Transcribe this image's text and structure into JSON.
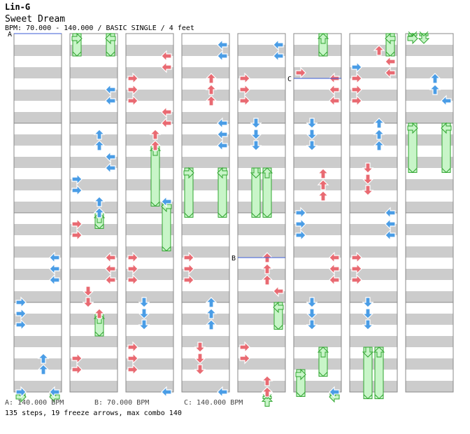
{
  "header": {
    "artist": "Lin-G",
    "title": "Sweet Dream",
    "bpm_line": "BPM: 70.000 - 140.000 / BASIC SINGLE / 4 feet"
  },
  "footer": {
    "bpm_a": "A: 140.000 BPM",
    "bpm_b": "B: 70.000 BPM",
    "bpm_c": "C: 140.000 BPM",
    "totals": "135 steps, 19 freeze arrows, max combo 140"
  },
  "colors": {
    "stripe": "#cccccc",
    "measure_line": "#888888",
    "quarter_arrow": "#e96a72",
    "eighth_arrow": "#4a9de6",
    "freeze": "#c8f5c8",
    "freeze_edge": "#2fa52f",
    "bpm_marker": "#3b5bd6"
  },
  "chart_data": {
    "type": "stepchart",
    "beats_per_column": 16,
    "panels": [
      "left",
      "down",
      "up",
      "right"
    ],
    "bpm_markers": [
      {
        "label": "A",
        "column": 0,
        "beat": 0
      },
      {
        "label": "B",
        "column": 4,
        "beat": 10
      },
      {
        "label": "C",
        "column": 5,
        "beat": 2
      }
    ],
    "columns": [
      {
        "notes": [
          {
            "beat": 10,
            "panel": "right",
            "kind": "eighth"
          },
          {
            "beat": 10.5,
            "panel": "right",
            "kind": "eighth"
          },
          {
            "beat": 11,
            "panel": "right",
            "kind": "eighth"
          },
          {
            "beat": 12,
            "panel": "left",
            "kind": "eighth"
          },
          {
            "beat": 12.5,
            "panel": "left",
            "kind": "eighth"
          },
          {
            "beat": 13,
            "panel": "left",
            "kind": "eighth"
          },
          {
            "beat": 14.5,
            "panel": "up",
            "kind": "eighth"
          },
          {
            "beat": 15,
            "panel": "up",
            "kind": "eighth"
          },
          {
            "beat": 16,
            "panel": "left",
            "kind": "eighth"
          },
          {
            "beat": 16,
            "panel": "right",
            "kind": "eighth"
          }
        ],
        "freezes": [
          {
            "panel": "left",
            "start": 16,
            "end": 16.2
          },
          {
            "panel": "right",
            "start": 16,
            "end": 16.2
          }
        ]
      },
      {
        "notes": [
          {
            "beat": 2.5,
            "panel": "right",
            "kind": "eighth"
          },
          {
            "beat": 3,
            "panel": "right",
            "kind": "eighth"
          },
          {
            "beat": 4.5,
            "panel": "up",
            "kind": "eighth"
          },
          {
            "beat": 5,
            "panel": "up",
            "kind": "eighth"
          },
          {
            "beat": 5.5,
            "panel": "right",
            "kind": "eighth"
          },
          {
            "beat": 6,
            "panel": "right",
            "kind": "eighth"
          },
          {
            "beat": 6.5,
            "panel": "left",
            "kind": "eighth"
          },
          {
            "beat": 7,
            "panel": "left",
            "kind": "eighth"
          },
          {
            "beat": 7.5,
            "panel": "up",
            "kind": "eighth"
          },
          {
            "beat": 8,
            "panel": "up",
            "kind": "eighth"
          },
          {
            "beat": 8.5,
            "panel": "left",
            "kind": "quarter"
          },
          {
            "beat": 9,
            "panel": "left",
            "kind": "quarter"
          },
          {
            "beat": 10,
            "panel": "right",
            "kind": "quarter"
          },
          {
            "beat": 10.5,
            "panel": "right",
            "kind": "quarter"
          },
          {
            "beat": 11,
            "panel": "right",
            "kind": "quarter"
          },
          {
            "beat": 11.5,
            "panel": "down",
            "kind": "quarter"
          },
          {
            "beat": 12,
            "panel": "down",
            "kind": "quarter"
          },
          {
            "beat": 12.5,
            "panel": "up",
            "kind": "quarter"
          },
          {
            "beat": 14.5,
            "panel": "left",
            "kind": "quarter"
          },
          {
            "beat": 15,
            "panel": "left",
            "kind": "quarter"
          }
        ],
        "freezes": [
          {
            "panel": "left",
            "start": 0,
            "end": 1
          },
          {
            "panel": "right",
            "start": 0,
            "end": 1
          },
          {
            "panel": "up",
            "start": 8,
            "end": 8.7
          },
          {
            "panel": "up",
            "start": 12.5,
            "end": 13.5
          }
        ]
      },
      {
        "notes": [
          {
            "beat": 1,
            "panel": "right",
            "kind": "quarter"
          },
          {
            "beat": 1.5,
            "panel": "right",
            "kind": "quarter"
          },
          {
            "beat": 2,
            "panel": "left",
            "kind": "quarter"
          },
          {
            "beat": 2.5,
            "panel": "left",
            "kind": "quarter"
          },
          {
            "beat": 3,
            "panel": "left",
            "kind": "quarter"
          },
          {
            "beat": 3.5,
            "panel": "right",
            "kind": "quarter"
          },
          {
            "beat": 4,
            "panel": "right",
            "kind": "quarter"
          },
          {
            "beat": 4.5,
            "panel": "up",
            "kind": "quarter"
          },
          {
            "beat": 5,
            "panel": "up",
            "kind": "quarter"
          },
          {
            "beat": 7.5,
            "panel": "right",
            "kind": "eighth"
          },
          {
            "beat": 10,
            "panel": "left",
            "kind": "quarter"
          },
          {
            "beat": 10.5,
            "panel": "left",
            "kind": "quarter"
          },
          {
            "beat": 11,
            "panel": "left",
            "kind": "quarter"
          },
          {
            "beat": 12,
            "panel": "down",
            "kind": "eighth"
          },
          {
            "beat": 12.5,
            "panel": "down",
            "kind": "eighth"
          },
          {
            "beat": 13,
            "panel": "down",
            "kind": "eighth"
          },
          {
            "beat": 14,
            "panel": "left",
            "kind": "quarter"
          },
          {
            "beat": 14.5,
            "panel": "left",
            "kind": "quarter"
          },
          {
            "beat": 15,
            "panel": "left",
            "kind": "quarter"
          },
          {
            "beat": 16,
            "panel": "right",
            "kind": "eighth"
          }
        ],
        "freezes": [
          {
            "panel": "up",
            "start": 5,
            "end": 7.7
          },
          {
            "panel": "right",
            "start": 7.5,
            "end": 9.7
          }
        ]
      },
      {
        "notes": [
          {
            "beat": 0.5,
            "panel": "right",
            "kind": "eighth"
          },
          {
            "beat": 1,
            "panel": "right",
            "kind": "eighth"
          },
          {
            "beat": 2,
            "panel": "up",
            "kind": "quarter"
          },
          {
            "beat": 2.5,
            "panel": "up",
            "kind": "quarter"
          },
          {
            "beat": 3,
            "panel": "up",
            "kind": "quarter"
          },
          {
            "beat": 4,
            "panel": "right",
            "kind": "eighth"
          },
          {
            "beat": 4.5,
            "panel": "right",
            "kind": "eighth"
          },
          {
            "beat": 5,
            "panel": "right",
            "kind": "eighth"
          },
          {
            "beat": 10,
            "panel": "left",
            "kind": "quarter"
          },
          {
            "beat": 10.5,
            "panel": "left",
            "kind": "quarter"
          },
          {
            "beat": 11,
            "panel": "left",
            "kind": "quarter"
          },
          {
            "beat": 12,
            "panel": "up",
            "kind": "eighth"
          },
          {
            "beat": 12.5,
            "panel": "up",
            "kind": "eighth"
          },
          {
            "beat": 13,
            "panel": "up",
            "kind": "eighth"
          },
          {
            "beat": 14,
            "panel": "down",
            "kind": "quarter"
          },
          {
            "beat": 14.5,
            "panel": "down",
            "kind": "quarter"
          },
          {
            "beat": 15,
            "panel": "down",
            "kind": "quarter"
          },
          {
            "beat": 16,
            "panel": "right",
            "kind": "eighth"
          }
        ],
        "freezes": [
          {
            "panel": "left",
            "start": 6,
            "end": 8.2
          },
          {
            "panel": "right",
            "start": 6,
            "end": 8.2
          }
        ]
      },
      {
        "notes": [
          {
            "beat": 0.5,
            "panel": "right",
            "kind": "eighth"
          },
          {
            "beat": 1,
            "panel": "right",
            "kind": "eighth"
          },
          {
            "beat": 2,
            "panel": "left",
            "kind": "quarter"
          },
          {
            "beat": 2.5,
            "panel": "left",
            "kind": "quarter"
          },
          {
            "beat": 3,
            "panel": "left",
            "kind": "quarter"
          },
          {
            "beat": 4,
            "panel": "down",
            "kind": "eighth"
          },
          {
            "beat": 4.5,
            "panel": "down",
            "kind": "eighth"
          },
          {
            "beat": 5,
            "panel": "down",
            "kind": "eighth"
          },
          {
            "beat": 10,
            "panel": "up",
            "kind": "quarter"
          },
          {
            "beat": 10.5,
            "panel": "up",
            "kind": "quarter"
          },
          {
            "beat": 11,
            "panel": "up",
            "kind": "quarter"
          },
          {
            "beat": 11.5,
            "panel": "right",
            "kind": "quarter"
          },
          {
            "beat": 14,
            "panel": "left",
            "kind": "quarter"
          },
          {
            "beat": 14.5,
            "panel": "left",
            "kind": "quarter"
          },
          {
            "beat": 15.5,
            "panel": "up",
            "kind": "quarter"
          },
          {
            "beat": 16,
            "panel": "up",
            "kind": "quarter"
          }
        ],
        "freezes": [
          {
            "panel": "down",
            "start": 6,
            "end": 8.2
          },
          {
            "panel": "up",
            "start": 6,
            "end": 8.2
          },
          {
            "panel": "right",
            "start": 12,
            "end": 13.2
          },
          {
            "panel": "up",
            "start": 16.2,
            "end": 16.3
          }
        ]
      },
      {
        "notes": [
          {
            "beat": 1.75,
            "panel": "left",
            "kind": "quarter"
          },
          {
            "beat": 2,
            "panel": "right",
            "kind": "quarter"
          },
          {
            "beat": 2.5,
            "panel": "right",
            "kind": "quarter"
          },
          {
            "beat": 3,
            "panel": "right",
            "kind": "quarter"
          },
          {
            "beat": 4,
            "panel": "down",
            "kind": "eighth"
          },
          {
            "beat": 4.5,
            "panel": "down",
            "kind": "eighth"
          },
          {
            "beat": 5,
            "panel": "down",
            "kind": "eighth"
          },
          {
            "beat": 6.25,
            "panel": "up",
            "kind": "quarter"
          },
          {
            "beat": 6.75,
            "panel": "up",
            "kind": "quarter"
          },
          {
            "beat": 7.25,
            "panel": "up",
            "kind": "quarter"
          },
          {
            "beat": 8,
            "panel": "left",
            "kind": "eighth"
          },
          {
            "beat": 8.5,
            "panel": "left",
            "kind": "eighth"
          },
          {
            "beat": 9,
            "panel": "left",
            "kind": "eighth"
          },
          {
            "beat": 10,
            "panel": "right",
            "kind": "quarter"
          },
          {
            "beat": 10.5,
            "panel": "right",
            "kind": "quarter"
          },
          {
            "beat": 11,
            "panel": "right",
            "kind": "quarter"
          },
          {
            "beat": 12,
            "panel": "down",
            "kind": "eighth"
          },
          {
            "beat": 12.5,
            "panel": "down",
            "kind": "eighth"
          },
          {
            "beat": 13,
            "panel": "down",
            "kind": "eighth"
          },
          {
            "beat": 16,
            "panel": "right",
            "kind": "eighth"
          }
        ],
        "freezes": [
          {
            "panel": "up",
            "start": 0,
            "end": 1
          },
          {
            "panel": "up",
            "start": 14,
            "end": 15.3
          },
          {
            "panel": "left",
            "start": 15,
            "end": 16.2
          },
          {
            "panel": "right",
            "start": 16,
            "end": 16.2
          }
        ]
      },
      {
        "notes": [
          {
            "beat": 0.75,
            "panel": "up",
            "kind": "quarter"
          },
          {
            "beat": 1.25,
            "panel": "right",
            "kind": "quarter"
          },
          {
            "beat": 1.5,
            "panel": "left",
            "kind": "eighth"
          },
          {
            "beat": 1.75,
            "panel": "right",
            "kind": "quarter"
          },
          {
            "beat": 2,
            "panel": "left",
            "kind": "quarter"
          },
          {
            "beat": 2.5,
            "panel": "left",
            "kind": "quarter"
          },
          {
            "beat": 3,
            "panel": "left",
            "kind": "quarter"
          },
          {
            "beat": 4,
            "panel": "up",
            "kind": "eighth"
          },
          {
            "beat": 4.5,
            "panel": "up",
            "kind": "eighth"
          },
          {
            "beat": 5,
            "panel": "up",
            "kind": "eighth"
          },
          {
            "beat": 6,
            "panel": "down",
            "kind": "quarter"
          },
          {
            "beat": 6.5,
            "panel": "down",
            "kind": "quarter"
          },
          {
            "beat": 7,
            "panel": "down",
            "kind": "quarter"
          },
          {
            "beat": 8,
            "panel": "right",
            "kind": "eighth"
          },
          {
            "beat": 8.5,
            "panel": "right",
            "kind": "eighth"
          },
          {
            "beat": 9,
            "panel": "right",
            "kind": "eighth"
          },
          {
            "beat": 10,
            "panel": "left",
            "kind": "quarter"
          },
          {
            "beat": 10.5,
            "panel": "left",
            "kind": "quarter"
          },
          {
            "beat": 11,
            "panel": "left",
            "kind": "quarter"
          },
          {
            "beat": 12,
            "panel": "down",
            "kind": "eighth"
          },
          {
            "beat": 12.5,
            "panel": "down",
            "kind": "eighth"
          },
          {
            "beat": 13,
            "panel": "down",
            "kind": "eighth"
          }
        ],
        "freezes": [
          {
            "panel": "right",
            "start": 0,
            "end": 1
          },
          {
            "panel": "down",
            "start": 14,
            "end": 16.3
          },
          {
            "panel": "up",
            "start": 14,
            "end": 16.3
          }
        ]
      },
      {
        "notes": [
          {
            "beat": 2,
            "panel": "up",
            "kind": "eighth"
          },
          {
            "beat": 2.5,
            "panel": "up",
            "kind": "eighth"
          },
          {
            "beat": 3,
            "panel": "right",
            "kind": "eighth"
          }
        ],
        "freezes": [
          {
            "panel": "left",
            "start": 0,
            "end": 0.1
          },
          {
            "panel": "down",
            "start": 0,
            "end": 0.1
          },
          {
            "panel": "left",
            "start": 4,
            "end": 6.2
          },
          {
            "panel": "right",
            "start": 4,
            "end": 6.2
          }
        ]
      }
    ]
  }
}
